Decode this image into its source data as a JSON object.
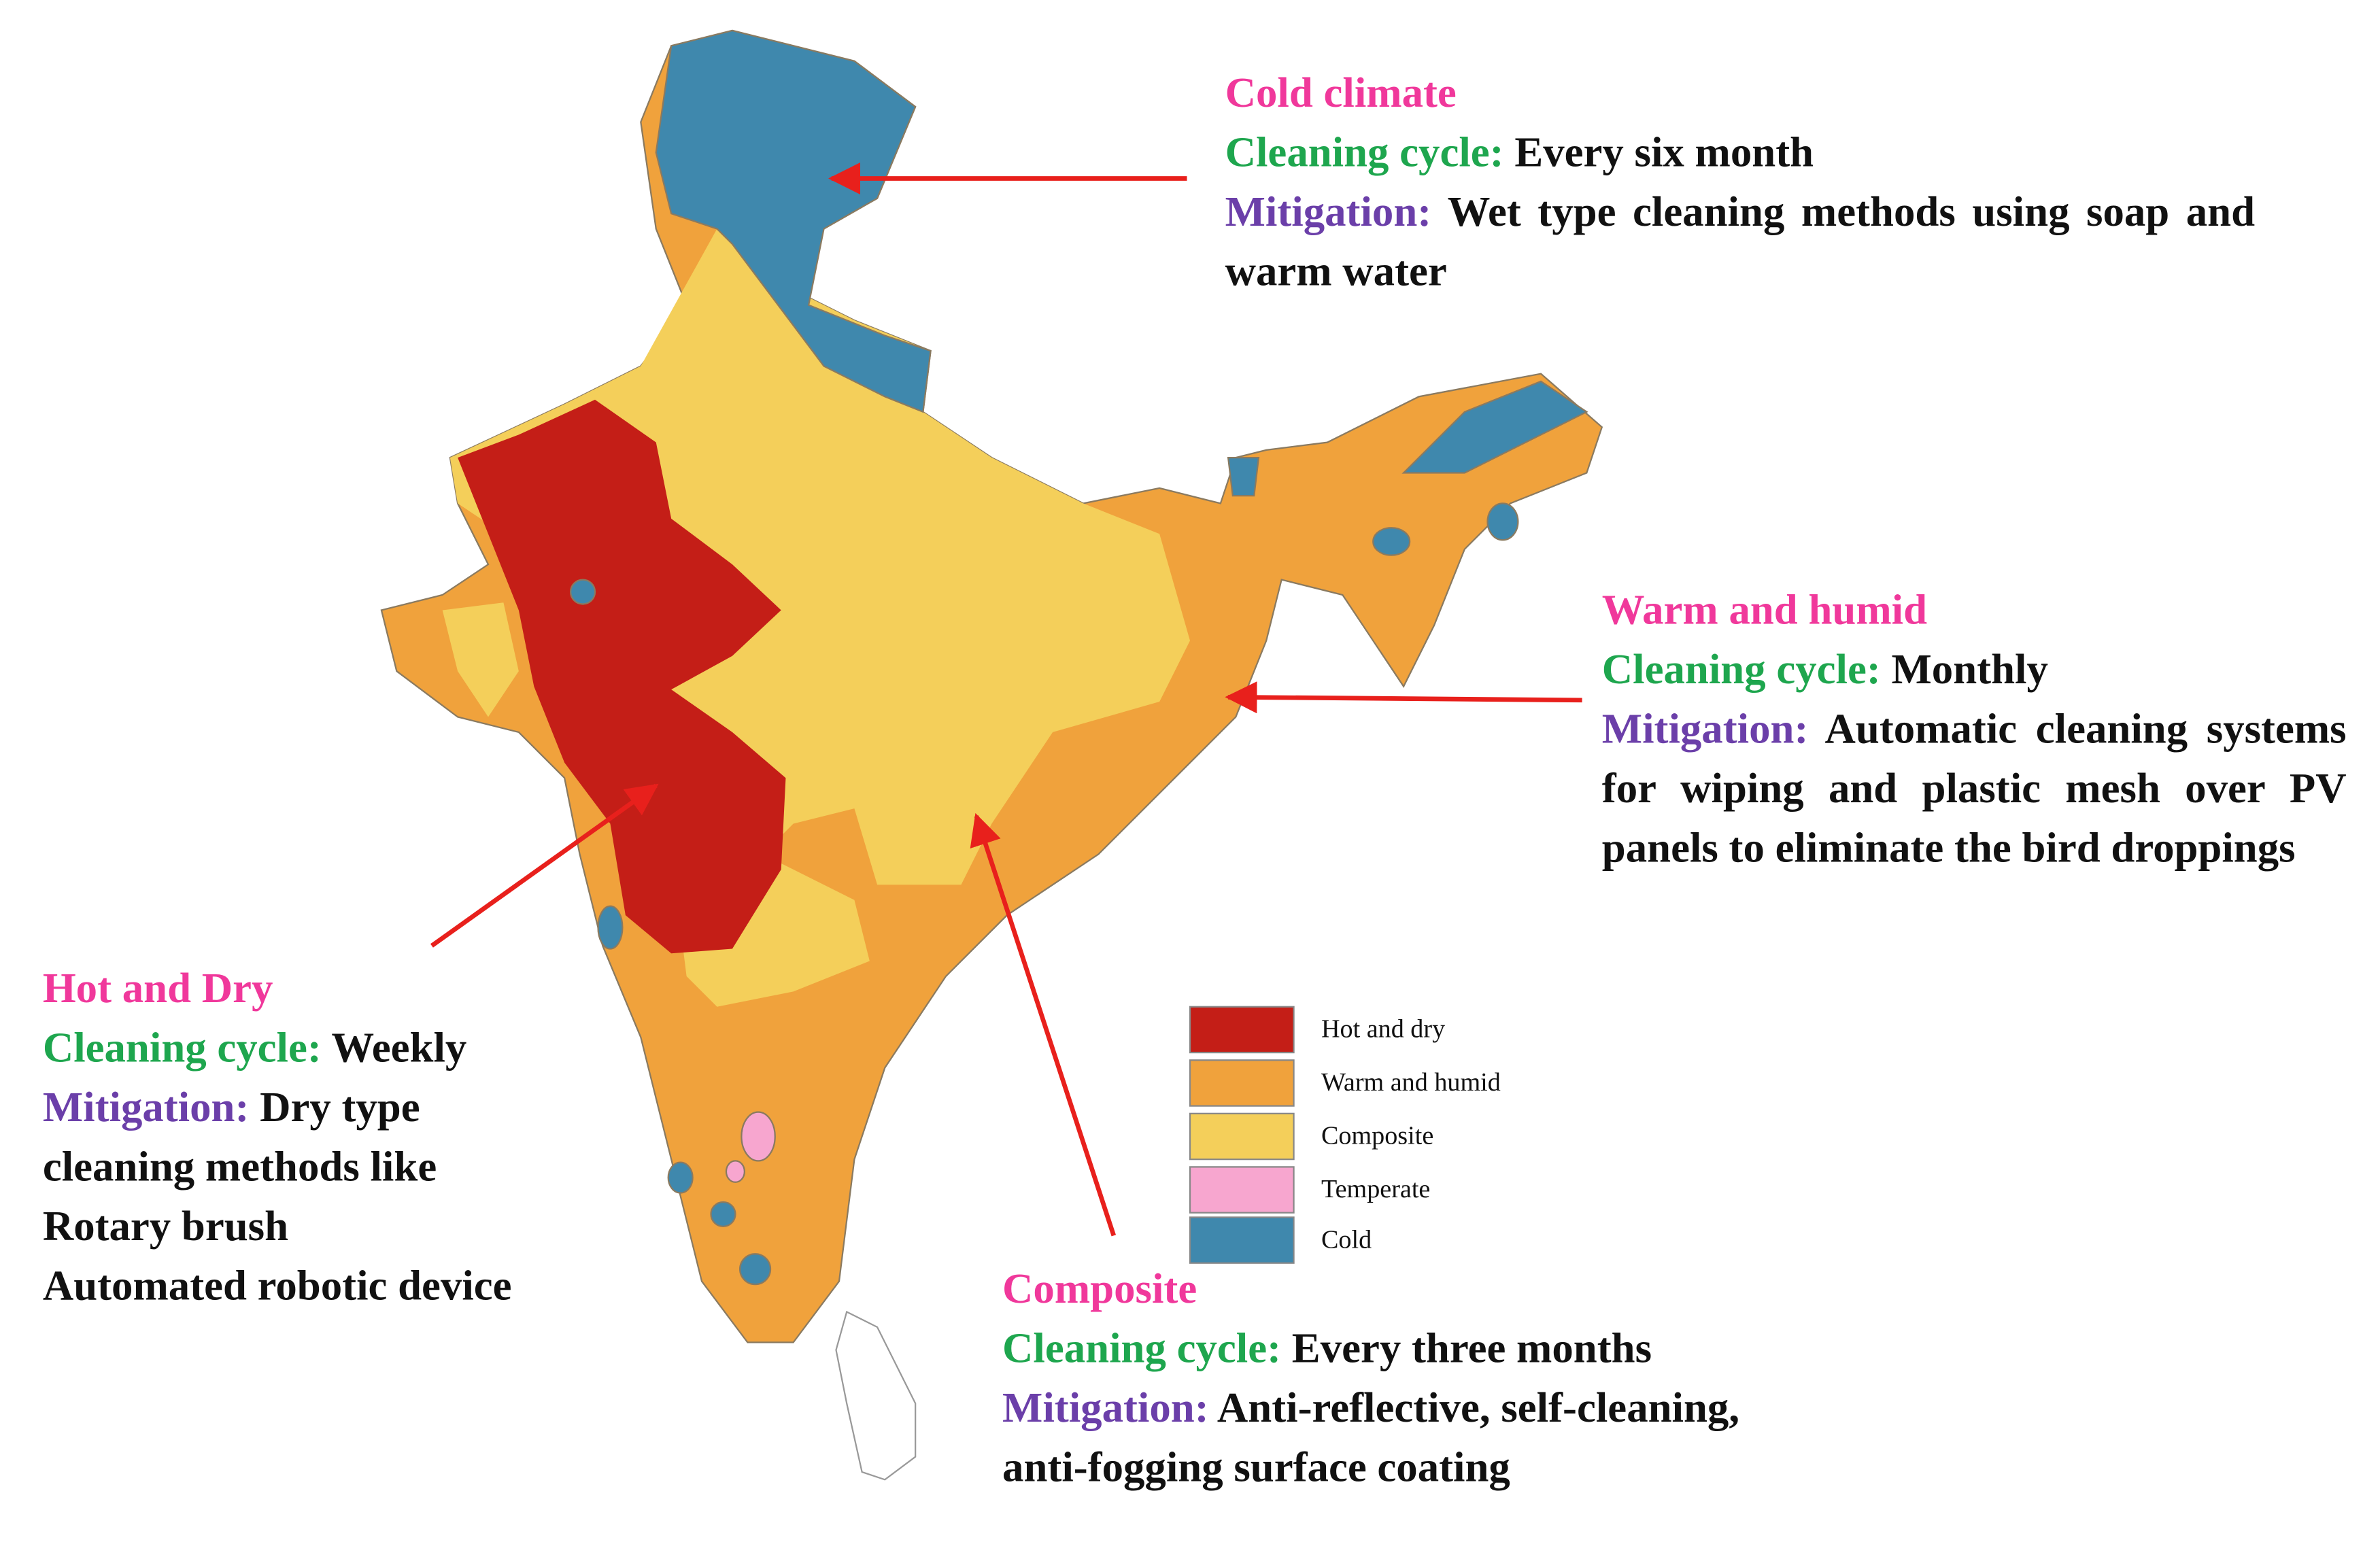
{
  "map": {
    "annotations": [
      {
        "title": "Cold climate",
        "cycle_label": "Cleaning cycle:",
        "cycle": "Every six month",
        "mitigation_label": "Mitigation:",
        "mitigation": "Wet type cleaning methods using soap and warm water"
      },
      {
        "title": "Warm and humid",
        "cycle_label": "Cleaning cycle:",
        "cycle": "Monthly",
        "mitigation_label": "Mitigation:",
        "mitigation": "Automatic cleaning systems for wiping and plastic mesh over PV panels to eliminate the bird droppings"
      },
      {
        "title": "Hot and Dry",
        "cycle_label": "Cleaning cycle:",
        "cycle": "Weekly",
        "mitigation_label": "Mitigation:",
        "mitigation": "Dry type cleaning methods like",
        "items": [
          "Rotary brush",
          "Automated robotic device"
        ]
      },
      {
        "title": "Composite",
        "cycle_label": "Cleaning cycle:",
        "cycle": "Every three months",
        "mitigation_label": "Mitigation:",
        "mitigation": "Anti-reflective, self-cleaning, anti-fogging surface coating"
      }
    ],
    "legend": [
      {
        "label": "Hot and dry",
        "color": "#c41e17"
      },
      {
        "label": "Warm and humid",
        "color": "#f0a23c"
      },
      {
        "label": "Composite",
        "color": "#f4cf5a"
      },
      {
        "label": "Temperate",
        "color": "#f7a6cf"
      },
      {
        "label": "Cold",
        "color": "#3f88ad"
      }
    ]
  }
}
